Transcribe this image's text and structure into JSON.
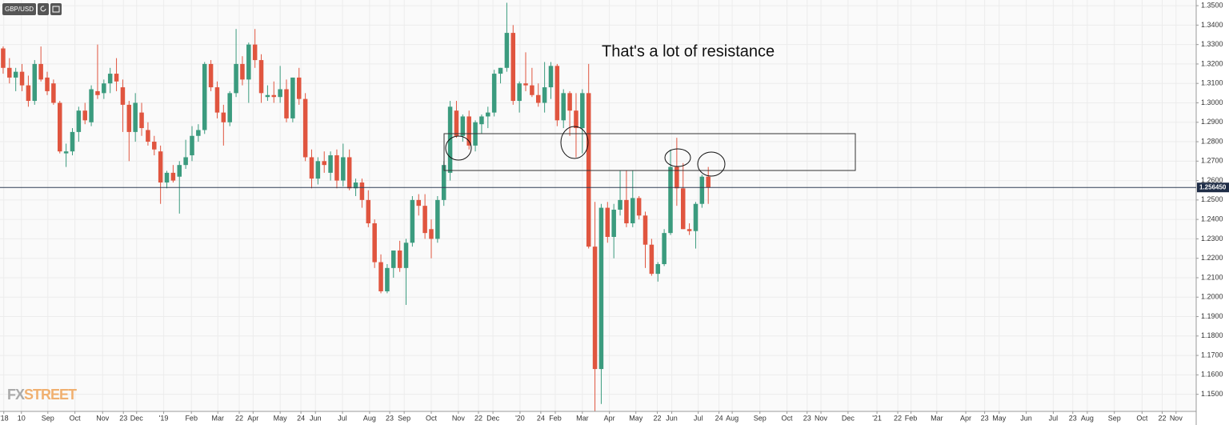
{
  "chart_data": {
    "type": "candlestick",
    "symbol": "GBP/USD",
    "annotation": "That's a lot of resistance",
    "brand": [
      "FX",
      "STREET"
    ],
    "up_color": "#3b9b7e",
    "down_color": "#e0553f",
    "grid": true,
    "last_price": {
      "value": 1.25645,
      "label": "1.256450"
    },
    "xlim": [
      0,
      190
    ],
    "ylim": [
      1.1412,
      1.3521
    ],
    "xticks": [
      {
        "value": 0.6,
        "label": "'18"
      },
      {
        "value": 3.4,
        "label": "10"
      },
      {
        "value": 7.6,
        "label": "Sep"
      },
      {
        "value": 11.9,
        "label": "Oct"
      },
      {
        "value": 16.3,
        "label": "Nov"
      },
      {
        "value": 19.6,
        "label": "23"
      },
      {
        "value": 21.7,
        "label": "Dec"
      },
      {
        "value": 26,
        "label": "'19"
      },
      {
        "value": 30.4,
        "label": "Feb"
      },
      {
        "value": 34.6,
        "label": "Mar"
      },
      {
        "value": 38,
        "label": "22"
      },
      {
        "value": 40.2,
        "label": "Apr"
      },
      {
        "value": 44.5,
        "label": "May"
      },
      {
        "value": 47.8,
        "label": "24"
      },
      {
        "value": 50.1,
        "label": "Jun"
      },
      {
        "value": 54.4,
        "label": "Jul"
      },
      {
        "value": 58.7,
        "label": "Aug"
      },
      {
        "value": 61.9,
        "label": "23"
      },
      {
        "value": 64.2,
        "label": "Sep"
      },
      {
        "value": 68.5,
        "label": "Oct"
      },
      {
        "value": 72.8,
        "label": "Nov"
      },
      {
        "value": 76,
        "label": "22"
      },
      {
        "value": 78.3,
        "label": "Dec"
      },
      {
        "value": 82.6,
        "label": "'20"
      },
      {
        "value": 85.9,
        "label": "24"
      },
      {
        "value": 88.2,
        "label": "Feb"
      },
      {
        "value": 92.5,
        "label": "Mar"
      },
      {
        "value": 96.8,
        "label": "Apr"
      },
      {
        "value": 101,
        "label": "May"
      },
      {
        "value": 104.4,
        "label": "22"
      },
      {
        "value": 106.7,
        "label": "Jun"
      },
      {
        "value": 110.9,
        "label": "Jul"
      },
      {
        "value": 114.2,
        "label": "24"
      },
      {
        "value": 116.3,
        "label": "Aug"
      },
      {
        "value": 120.7,
        "label": "Sep"
      },
      {
        "value": 125,
        "label": "Oct"
      },
      {
        "value": 128.2,
        "label": "23"
      },
      {
        "value": 130.4,
        "label": "Nov"
      },
      {
        "value": 134.7,
        "label": "Dec"
      },
      {
        "value": 139.3,
        "label": "'21"
      },
      {
        "value": 142.6,
        "label": "22"
      },
      {
        "value": 144.7,
        "label": "Feb"
      },
      {
        "value": 148.8,
        "label": "Mar"
      },
      {
        "value": 153.4,
        "label": "Apr"
      },
      {
        "value": 156.4,
        "label": "23"
      },
      {
        "value": 158.7,
        "label": "May"
      },
      {
        "value": 163,
        "label": "Jun"
      },
      {
        "value": 167.3,
        "label": "Jul"
      },
      {
        "value": 170.4,
        "label": "23"
      },
      {
        "value": 172.7,
        "label": "Aug"
      },
      {
        "value": 177,
        "label": "Sep"
      },
      {
        "value": 181.4,
        "label": "Oct"
      },
      {
        "value": 184.6,
        "label": "22"
      },
      {
        "value": 186.8,
        "label": "Nov"
      }
    ],
    "yticks": [
      {
        "value": 1.15,
        "label": "1.1500"
      },
      {
        "value": 1.16,
        "label": "1.1600"
      },
      {
        "value": 1.17,
        "label": "1.1700"
      },
      {
        "value": 1.18,
        "label": "1.1800"
      },
      {
        "value": 1.19,
        "label": "1.1900"
      },
      {
        "value": 1.2,
        "label": "1.2000"
      },
      {
        "value": 1.21,
        "label": "1.2100"
      },
      {
        "value": 1.22,
        "label": "1.2200"
      },
      {
        "value": 1.23,
        "label": "1.2300"
      },
      {
        "value": 1.24,
        "label": "1.2400"
      },
      {
        "value": 1.25,
        "label": "1.2500"
      },
      {
        "value": 1.26,
        "label": "1.2600"
      },
      {
        "value": 1.27,
        "label": "1.2700"
      },
      {
        "value": 1.28,
        "label": "1.2800"
      },
      {
        "value": 1.29,
        "label": "1.2900"
      },
      {
        "value": 1.3,
        "label": "1.3000"
      },
      {
        "value": 1.31,
        "label": "1.3100"
      },
      {
        "value": 1.32,
        "label": "1.3200"
      },
      {
        "value": 1.33,
        "label": "1.3300"
      },
      {
        "value": 1.34,
        "label": "1.3400"
      },
      {
        "value": 1.35,
        "label": "1.3500"
      }
    ],
    "open": [
      1.328,
      1.318,
      1.313,
      1.316,
      1.309,
      1.301,
      1.32,
      1.313,
      1.31,
      1.3,
      1.274,
      1.275,
      1.285,
      1.296,
      1.29,
      1.306,
      1.305,
      1.31,
      1.315,
      1.308,
      1.299,
      1.285,
      1.295,
      1.286,
      1.28,
      1.275,
      1.259,
      1.264,
      1.262,
      1.268,
      1.273,
      1.283,
      1.286,
      1.32,
      1.308,
      1.295,
      1.29,
      1.305,
      1.32,
      1.312,
      1.33,
      1.322,
      1.303,
      1.304,
      1.303,
      1.307,
      1.292,
      1.313,
      1.302,
      1.272,
      1.261,
      1.27,
      1.264,
      1.273,
      1.26,
      1.272,
      1.256,
      1.259,
      1.25,
      1.238,
      1.218,
      1.203,
      1.215,
      1.224,
      1.215,
      1.228,
      1.25,
      1.247,
      1.235,
      1.23,
      1.25,
      1.264,
      1.296,
      1.283,
      1.293,
      1.278,
      1.289,
      1.293,
      1.295,
      1.315,
      1.318,
      1.336,
      1.301,
      1.31,
      1.309,
      1.304,
      1.3,
      1.308,
      1.319,
      1.291,
      1.305,
      1.296,
      1.287,
      1.305,
      1.226,
      1.163,
      1.246,
      1.231,
      1.245,
      1.25,
      1.238,
      1.251,
      1.242,
      1.227,
      1.212,
      1.217,
      1.233,
      1.267,
      1.256,
      1.235,
      1.234,
      1.248,
      1.262
    ],
    "high": [
      1.329,
      1.323,
      1.318,
      1.32,
      1.314,
      1.322,
      1.329,
      1.316,
      1.312,
      1.301,
      1.279,
      1.287,
      1.298,
      1.3,
      1.309,
      1.33,
      1.312,
      1.318,
      1.323,
      1.312,
      1.301,
      1.305,
      1.3,
      1.29,
      1.283,
      1.278,
      1.265,
      1.268,
      1.27,
      1.281,
      1.288,
      1.289,
      1.321,
      1.322,
      1.311,
      1.299,
      1.306,
      1.338,
      1.324,
      1.331,
      1.338,
      1.325,
      1.309,
      1.311,
      1.319,
      1.312,
      1.313,
      1.318,
      1.305,
      1.276,
      1.272,
      1.275,
      1.275,
      1.276,
      1.279,
      1.276,
      1.261,
      1.261,
      1.255,
      1.24,
      1.222,
      1.217,
      1.224,
      1.229,
      1.23,
      1.252,
      1.253,
      1.253,
      1.24,
      1.252,
      1.27,
      1.301,
      1.301,
      1.294,
      1.296,
      1.291,
      1.294,
      1.298,
      1.317,
      1.318,
      1.3515,
      1.34,
      1.311,
      1.326,
      1.318,
      1.31,
      1.321,
      1.321,
      1.32,
      1.307,
      1.306,
      1.305,
      1.307,
      1.32,
      1.249,
      1.248,
      1.249,
      1.248,
      1.265,
      1.265,
      1.265,
      1.252,
      1.244,
      1.23,
      1.218,
      1.235,
      1.276,
      1.282,
      1.269,
      1.238,
      1.249,
      1.263,
      1.267
    ],
    "low": [
      1.315,
      1.31,
      1.306,
      1.306,
      1.298,
      1.299,
      1.311,
      1.304,
      1.299,
      1.274,
      1.267,
      1.273,
      1.28,
      1.289,
      1.288,
      1.302,
      1.302,
      1.305,
      1.306,
      1.285,
      1.27,
      1.28,
      1.283,
      1.278,
      1.273,
      1.248,
      1.256,
      1.259,
      1.243,
      1.266,
      1.27,
      1.28,
      1.284,
      1.306,
      1.292,
      1.278,
      1.288,
      1.303,
      1.309,
      1.3,
      1.318,
      1.3,
      1.301,
      1.3,
      1.3,
      1.29,
      1.29,
      1.299,
      1.27,
      1.256,
      1.258,
      1.264,
      1.26,
      1.256,
      1.257,
      1.255,
      1.252,
      1.246,
      1.236,
      1.215,
      1.202,
      1.202,
      1.21,
      1.213,
      1.196,
      1.226,
      1.242,
      1.23,
      1.22,
      1.228,
      1.247,
      1.26,
      1.282,
      1.28,
      1.276,
      1.275,
      1.284,
      1.287,
      1.293,
      1.31,
      1.316,
      1.299,
      1.295,
      1.306,
      1.303,
      1.298,
      1.295,
      1.302,
      1.288,
      1.287,
      1.283,
      1.272,
      1.274,
      1.225,
      1.141,
      1.145,
      1.228,
      1.22,
      1.242,
      1.236,
      1.236,
      1.24,
      1.215,
      1.211,
      1.208,
      1.216,
      1.232,
      1.247,
      1.235,
      1.232,
      1.225,
      1.246,
      1.248
    ],
    "close": [
      1.318,
      1.313,
      1.316,
      1.309,
      1.301,
      1.32,
      1.312,
      1.306,
      1.3,
      1.275,
      1.275,
      1.285,
      1.296,
      1.291,
      1.307,
      1.304,
      1.31,
      1.315,
      1.311,
      1.299,
      1.285,
      1.3,
      1.287,
      1.28,
      1.276,
      1.259,
      1.264,
      1.26,
      1.268,
      1.272,
      1.283,
      1.286,
      1.32,
      1.308,
      1.295,
      1.29,
      1.305,
      1.32,
      1.312,
      1.33,
      1.322,
      1.305,
      1.304,
      1.303,
      1.307,
      1.292,
      1.313,
      1.302,
      1.272,
      1.261,
      1.27,
      1.268,
      1.273,
      1.26,
      1.272,
      1.256,
      1.259,
      1.25,
      1.238,
      1.218,
      1.203,
      1.215,
      1.224,
      1.215,
      1.228,
      1.25,
      1.247,
      1.233,
      1.23,
      1.25,
      1.268,
      1.298,
      1.283,
      1.293,
      1.278,
      1.29,
      1.293,
      1.295,
      1.315,
      1.318,
      1.336,
      1.301,
      1.31,
      1.309,
      1.304,
      1.3,
      1.308,
      1.319,
      1.291,
      1.305,
      1.296,
      1.287,
      1.305,
      1.226,
      1.163,
      1.246,
      1.231,
      1.245,
      1.25,
      1.238,
      1.251,
      1.242,
      1.227,
      1.212,
      1.217,
      1.233,
      1.267,
      1.256,
      1.235,
      1.234,
      1.248,
      1.262,
      1.2565
    ]
  }
}
